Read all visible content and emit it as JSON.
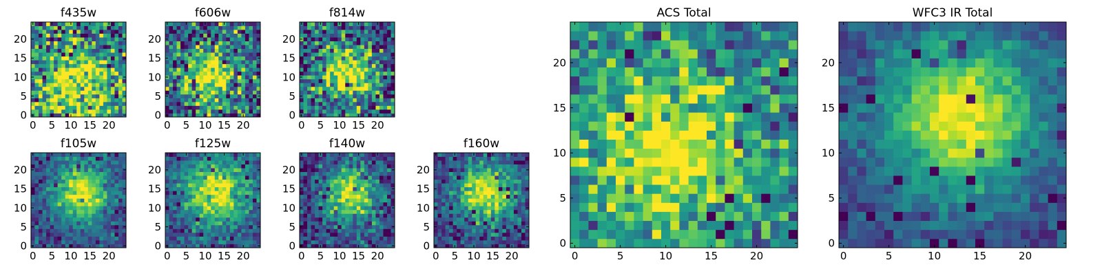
{
  "figure": {
    "colormap": "viridis"
  },
  "chart_data": [
    {
      "type": "heatmap",
      "id": "f435w",
      "title": "f435w",
      "xlim": [
        0,
        24
      ],
      "ylim": [
        0,
        24
      ],
      "grid": false,
      "xticks": [
        0,
        5,
        10,
        15,
        20
      ],
      "yticks": [
        0,
        5,
        10,
        15,
        20
      ],
      "source_center": [
        11,
        8
      ],
      "source_sigma": 6.5,
      "source_peak": 0.55,
      "background": 0.45,
      "noise": 0.55
    },
    {
      "type": "heatmap",
      "id": "f606w",
      "title": "f606w",
      "xlim": [
        0,
        24
      ],
      "ylim": [
        0,
        24
      ],
      "grid": false,
      "xticks": [
        0,
        5,
        10,
        15,
        20
      ],
      "yticks": [
        0,
        5,
        10,
        15,
        20
      ],
      "source_center": [
        12,
        10
      ],
      "source_sigma": 5.0,
      "source_peak": 0.6,
      "background": 0.35,
      "noise": 0.5
    },
    {
      "type": "heatmap",
      "id": "f814w",
      "title": "f814w",
      "xlim": [
        0,
        24
      ],
      "ylim": [
        0,
        24
      ],
      "grid": false,
      "xticks": [
        0,
        5,
        10,
        15,
        20
      ],
      "yticks": [
        0,
        5,
        10,
        15,
        20
      ],
      "source_center": [
        12,
        11
      ],
      "source_sigma": 5.0,
      "source_peak": 0.65,
      "background": 0.3,
      "noise": 0.5
    },
    {
      "type": "heatmap",
      "id": "f105w",
      "title": "f105w",
      "xlim": [
        0,
        24
      ],
      "ylim": [
        0,
        24
      ],
      "grid": false,
      "xticks": [
        0,
        5,
        10,
        15,
        20
      ],
      "yticks": [
        0,
        5,
        10,
        15,
        20
      ],
      "source_center": [
        13,
        14
      ],
      "source_sigma": 5.0,
      "source_peak": 0.75,
      "background": 0.25,
      "noise": 0.22
    },
    {
      "type": "heatmap",
      "id": "f125w",
      "title": "f125w",
      "xlim": [
        0,
        24
      ],
      "ylim": [
        0,
        24
      ],
      "grid": false,
      "xticks": [
        0,
        5,
        10,
        15,
        20
      ],
      "yticks": [
        0,
        5,
        10,
        15,
        20
      ],
      "source_center": [
        13,
        14
      ],
      "source_sigma": 5.5,
      "source_peak": 0.7,
      "background": 0.3,
      "noise": 0.25
    },
    {
      "type": "heatmap",
      "id": "f140w",
      "title": "f140w",
      "xlim": [
        0,
        24
      ],
      "ylim": [
        0,
        24
      ],
      "grid": false,
      "xticks": [
        0,
        5,
        10,
        15,
        20
      ],
      "yticks": [
        0,
        5,
        10,
        15,
        20
      ],
      "source_center": [
        13,
        14
      ],
      "source_sigma": 5.0,
      "source_peak": 0.75,
      "background": 0.2,
      "noise": 0.3
    },
    {
      "type": "heatmap",
      "id": "f160w",
      "title": "f160w",
      "xlim": [
        0,
        24
      ],
      "ylim": [
        0,
        24
      ],
      "grid": false,
      "xticks": [
        0,
        5,
        10,
        15,
        20
      ],
      "yticks": [
        0,
        5,
        10,
        15,
        20
      ],
      "source_center": [
        13,
        14
      ],
      "source_sigma": 5.5,
      "source_peak": 0.75,
      "background": 0.2,
      "noise": 0.28
    },
    {
      "type": "heatmap",
      "id": "acs-total",
      "title": "ACS Total",
      "xlim": [
        0,
        24
      ],
      "ylim": [
        0,
        24
      ],
      "grid": false,
      "xticks": [
        0,
        5,
        10,
        15,
        20
      ],
      "yticks": [
        0,
        5,
        10,
        15,
        20
      ],
      "source_center": [
        10,
        10
      ],
      "source_sigma": 6.0,
      "source_peak": 0.55,
      "background": 0.45,
      "noise": 0.35
    },
    {
      "type": "heatmap",
      "id": "wfc3-ir-total",
      "title": "WFC3 IR Total",
      "xlim": [
        0,
        24
      ],
      "ylim": [
        0,
        24
      ],
      "grid": false,
      "xticks": [
        0,
        5,
        10,
        15,
        20
      ],
      "yticks": [
        0,
        5,
        10,
        15,
        20
      ],
      "source_center": [
        13,
        14
      ],
      "source_sigma": 6.0,
      "source_peak": 0.75,
      "background": 0.22,
      "noise": 0.16
    }
  ]
}
